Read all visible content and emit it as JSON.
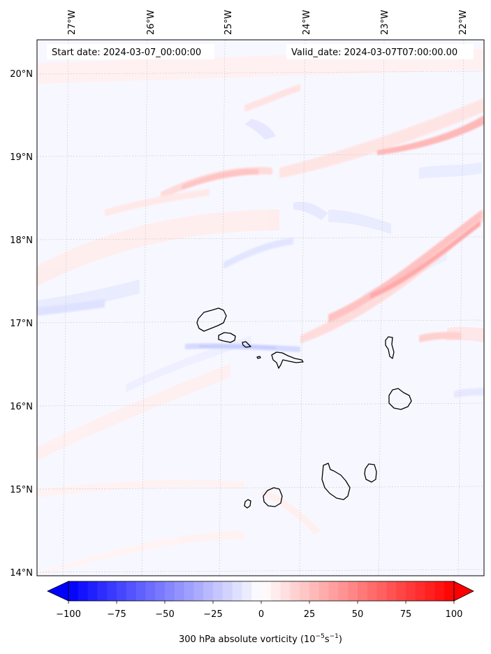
{
  "header": {
    "start_date": "Start date: 2024-03-07_00:00:00",
    "valid_date": "Valid_date: 2024-03-07T07:00:00.00"
  },
  "map": {
    "lon_labels": [
      "27°W",
      "26°W",
      "25°W",
      "24°W",
      "23°W",
      "22°W"
    ],
    "lat_labels": [
      "20°N",
      "19°N",
      "18°N",
      "17°N",
      "16°N",
      "15°N",
      "14°N"
    ],
    "gridline_style": "dotted light grey",
    "background_color": "#f7f8ff",
    "coastline_color": "#000000"
  },
  "colorbar": {
    "ticks": [
      "−100",
      "−75",
      "−50",
      "−25",
      "0",
      "25",
      "50",
      "75",
      "100"
    ],
    "range": [
      -100,
      100
    ],
    "step": 5,
    "extend": "both",
    "colormap": "bwr",
    "low_color": "#0000ff",
    "mid_color": "#ffffff",
    "high_color": "#ff0000",
    "label_main": "300 hPa absolute vorticity (10",
    "label_exp1": "−5",
    "label_mid": "s",
    "label_exp2": "−1",
    "label_end": ")"
  }
}
